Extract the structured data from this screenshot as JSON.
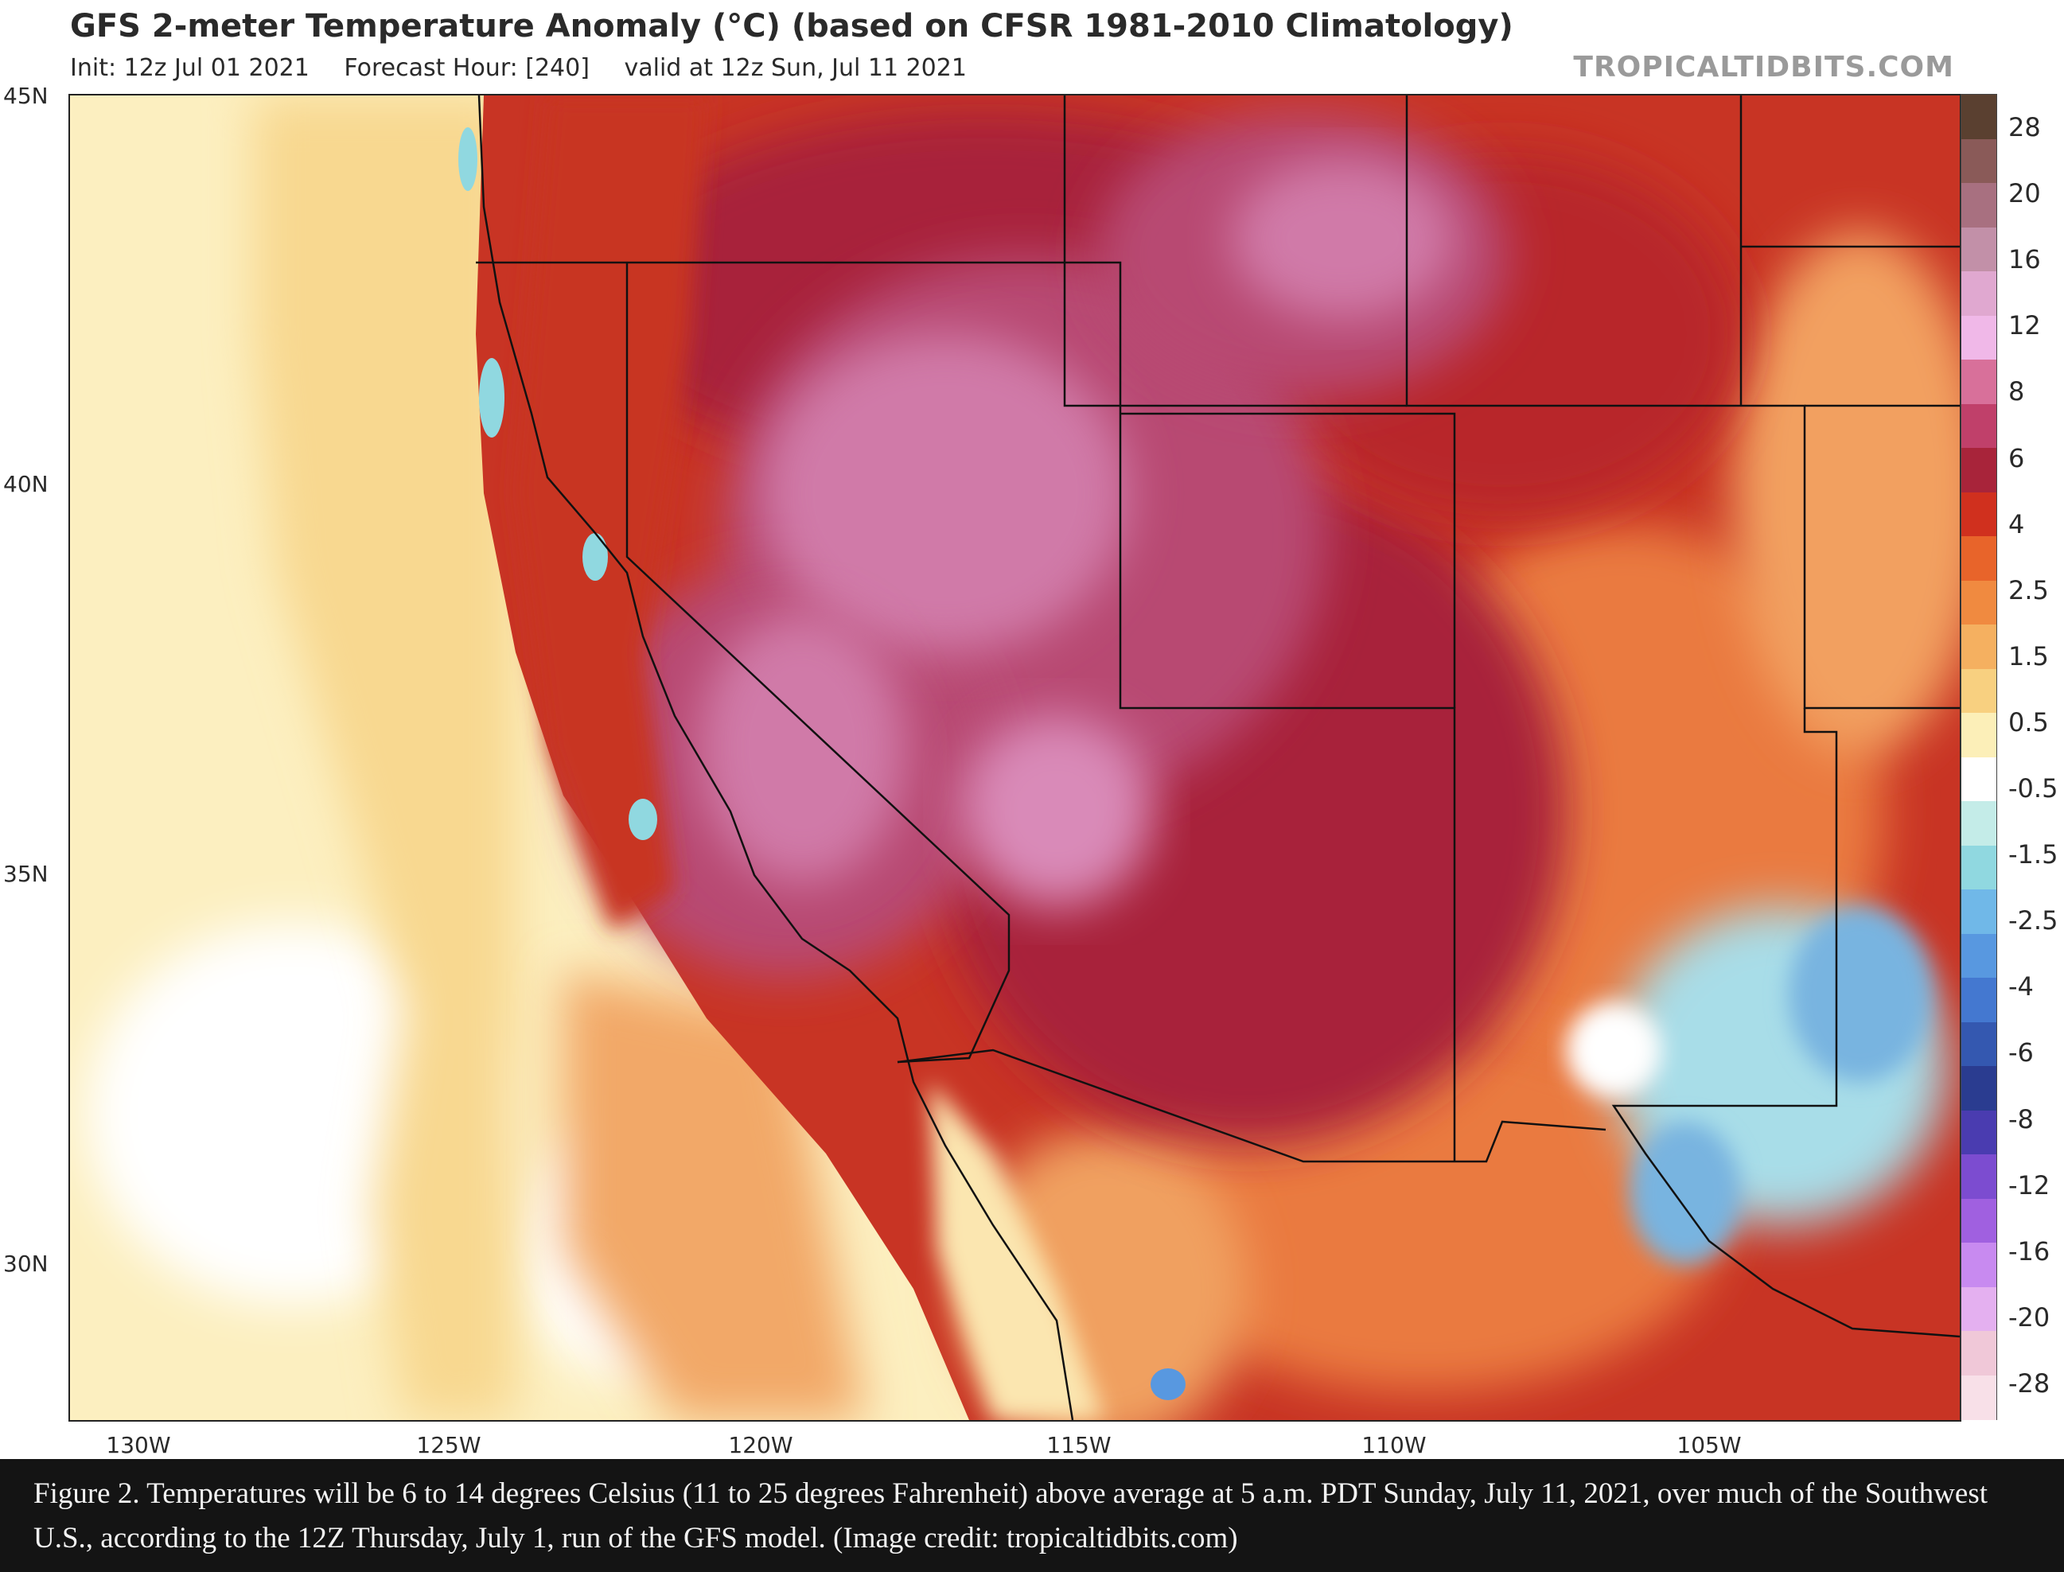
{
  "header": {
    "title": "GFS 2-meter Temperature Anomaly (°C) (based on CFSR 1981-2010 Climatology)",
    "init": "Init: 12z Jul 01 2021",
    "forecast_hour": "Forecast Hour: [240]",
    "valid": "valid at 12z Sun, Jul 11 2021",
    "watermark": "TROPICALTIDBITS.COM"
  },
  "map": {
    "lat_labels": [
      "45N",
      "40N",
      "35N",
      "30N"
    ],
    "lon_labels": [
      "130W",
      "125W",
      "120W",
      "115W",
      "110W",
      "105W"
    ],
    "ocean_color": "#fcefc0",
    "hot_colors": [
      "#8b1e3f",
      "#a8325a",
      "#c24a78",
      "#d96aa0",
      "#b8262b",
      "#d8452b",
      "#ea7a3f"
    ],
    "cool_colors": [
      "#a8dde8",
      "#78b4e0",
      "#5c8fd8"
    ]
  },
  "colorbar": {
    "labels": [
      "28",
      "20",
      "16",
      "12",
      "8",
      "6",
      "4",
      "2.5",
      "1.5",
      "0.5",
      "-0.5",
      "-1.5",
      "-2.5",
      "-4",
      "-6",
      "-8",
      "-12",
      "-16",
      "-20",
      "-28"
    ],
    "colors": [
      "#5a4030",
      "#8a5a58",
      "#a87080",
      "#c290a8",
      "#e0a8d0",
      "#f0b8e8",
      "#d8709a",
      "#c0406a",
      "#a8243a",
      "#d0301e",
      "#e8642a",
      "#f08a40",
      "#f5b060",
      "#f8d080",
      "#fcefb8",
      "#ffffff",
      "#c4ece8",
      "#90d8e0",
      "#70b8e8",
      "#5898e0",
      "#4478d0",
      "#3458b0",
      "#2a3c90",
      "#4a3cb0",
      "#7c4cd0",
      "#a060e0",
      "#c88af0",
      "#e4b0f0",
      "#f0c8d8",
      "#f8e0e8"
    ]
  },
  "caption": {
    "text": "Figure 2. Temperatures will be 6 to 14 degrees Celsius (11 to 25 degrees Fahrenheit) above average at 5 a.m. PDT Sunday, July 11, 2021, over much of the Southwest U.S., according to the 12Z Thursday, July 1, run of the GFS model. (Image credit: tropicaltidbits.com)"
  }
}
